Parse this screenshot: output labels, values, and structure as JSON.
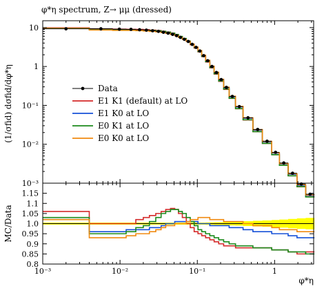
{
  "chart_data": [
    {
      "type": "line",
      "title": "φ*η spectrum, Z→ μμ (dressed)",
      "ylabel": "(1/σfid) dσfid/dφ*η",
      "xlabel": "",
      "x_scale": "log",
      "y_scale": "log",
      "xlim": [
        0.001,
        3.2
      ],
      "ylim": [
        0.001,
        15
      ],
      "grid": false,
      "legend_position": "center-left",
      "x_tick_labels": [
        "10⁻³",
        "10⁻²",
        "10⁻¹",
        "1"
      ],
      "y_tick_labels": [
        "10⁻³",
        "10⁻²",
        "10⁻¹",
        "1",
        "10"
      ],
      "bin_edges": [
        0.001,
        0.004,
        0.008,
        0.012,
        0.016,
        0.02,
        0.024,
        0.029,
        0.034,
        0.039,
        0.045,
        0.051,
        0.057,
        0.064,
        0.072,
        0.081,
        0.091,
        0.102,
        0.114,
        0.128,
        0.145,
        0.165,
        0.189,
        0.219,
        0.258,
        0.312,
        0.391,
        0.524,
        0.695,
        0.918,
        1.153,
        1.496,
        1.947,
        2.522,
        3.277
      ],
      "data_y": [
        9.3,
        9.3,
        9.1,
        9.0,
        8.8,
        8.6,
        8.3,
        8.0,
        7.6,
        7.2,
        6.7,
        6.2,
        5.6,
        5.0,
        4.4,
        3.7,
        3.1,
        2.5,
        1.9,
        1.4,
        1.0,
        0.7,
        0.46,
        0.29,
        0.17,
        0.093,
        0.048,
        0.024,
        0.012,
        0.0062,
        0.0033,
        0.0018,
        0.00095,
        0.00052
      ],
      "series": [
        {
          "name": "E1 K1 (default) at LO",
          "color": "#d42a2a",
          "ratio": [
            1.06,
            1.0,
            1.0,
            1.0,
            1.02,
            1.03,
            1.04,
            1.05,
            1.06,
            1.07,
            1.075,
            1.07,
            1.05,
            1.03,
            1.0,
            0.98,
            0.96,
            0.95,
            0.94,
            0.93,
            0.92,
            0.91,
            0.9,
            0.89,
            0.89,
            0.88,
            0.88,
            0.88,
            0.88,
            0.87,
            0.87,
            0.86,
            0.85,
            0.86
          ]
        },
        {
          "name": "E1 K0 at LO",
          "color": "#1650d8",
          "ratio": [
            1.02,
            0.96,
            0.96,
            0.97,
            0.97,
            0.97,
            0.98,
            0.98,
            0.99,
            1.0,
            1.0,
            1.01,
            1.01,
            1.01,
            1.01,
            1.01,
            1.01,
            1.0,
            1.0,
            1.0,
            0.99,
            0.99,
            0.99,
            0.99,
            0.98,
            0.98,
            0.97,
            0.96,
            0.96,
            0.95,
            0.95,
            0.94,
            0.93,
            0.93
          ]
        },
        {
          "name": "E0 K1 at LO",
          "color": "#1b8a1b",
          "ratio": [
            1.03,
            0.95,
            0.95,
            0.96,
            0.98,
            0.99,
            1.01,
            1.03,
            1.05,
            1.06,
            1.07,
            1.07,
            1.06,
            1.05,
            1.03,
            1.01,
            0.99,
            0.97,
            0.96,
            0.95,
            0.94,
            0.93,
            0.92,
            0.91,
            0.9,
            0.89,
            0.89,
            0.88,
            0.88,
            0.87,
            0.87,
            0.86,
            0.86,
            0.85
          ]
        },
        {
          "name": "E0 K0 at LO",
          "color": "#f08a10",
          "ratio": [
            1.02,
            0.93,
            0.93,
            0.94,
            0.95,
            0.95,
            0.96,
            0.97,
            0.98,
            0.99,
            0.99,
            1.0,
            1.0,
            1.0,
            1.01,
            1.02,
            1.02,
            1.03,
            1.03,
            1.03,
            1.02,
            1.02,
            1.02,
            1.01,
            1.01,
            1.01,
            1.0,
            0.99,
            0.99,
            0.98,
            0.97,
            0.97,
            0.96,
            0.96
          ]
        }
      ],
      "legend": [
        "Data",
        "E1 K1 (default) at LO",
        "E1 K0 at LO",
        "E0 K1 at LO",
        "E0 K0 at LO"
      ]
    },
    {
      "type": "line",
      "ylabel": "MC/Data",
      "xlabel": "φ*η",
      "x_scale": "log",
      "xlim": [
        0.001,
        3.2
      ],
      "ylim": [
        0.8,
        1.2
      ],
      "y_tick_labels": [
        "0.8",
        "0.85",
        "0.9",
        "0.95",
        "1.0",
        "1.05",
        "1.1",
        "1.15"
      ],
      "x_tick_labels": [
        "10⁻³",
        "10⁻²",
        "10⁻¹",
        "1"
      ],
      "data_band_color": "#ffff00",
      "data_band_halfwidth": [
        0.005,
        0.005,
        0.005,
        0.005,
        0.005,
        0.005,
        0.005,
        0.005,
        0.005,
        0.005,
        0.005,
        0.005,
        0.005,
        0.005,
        0.005,
        0.005,
        0.005,
        0.005,
        0.005,
        0.006,
        0.006,
        0.007,
        0.007,
        0.008,
        0.009,
        0.01,
        0.012,
        0.014,
        0.016,
        0.018,
        0.02,
        0.023,
        0.026,
        0.028
      ]
    }
  ]
}
